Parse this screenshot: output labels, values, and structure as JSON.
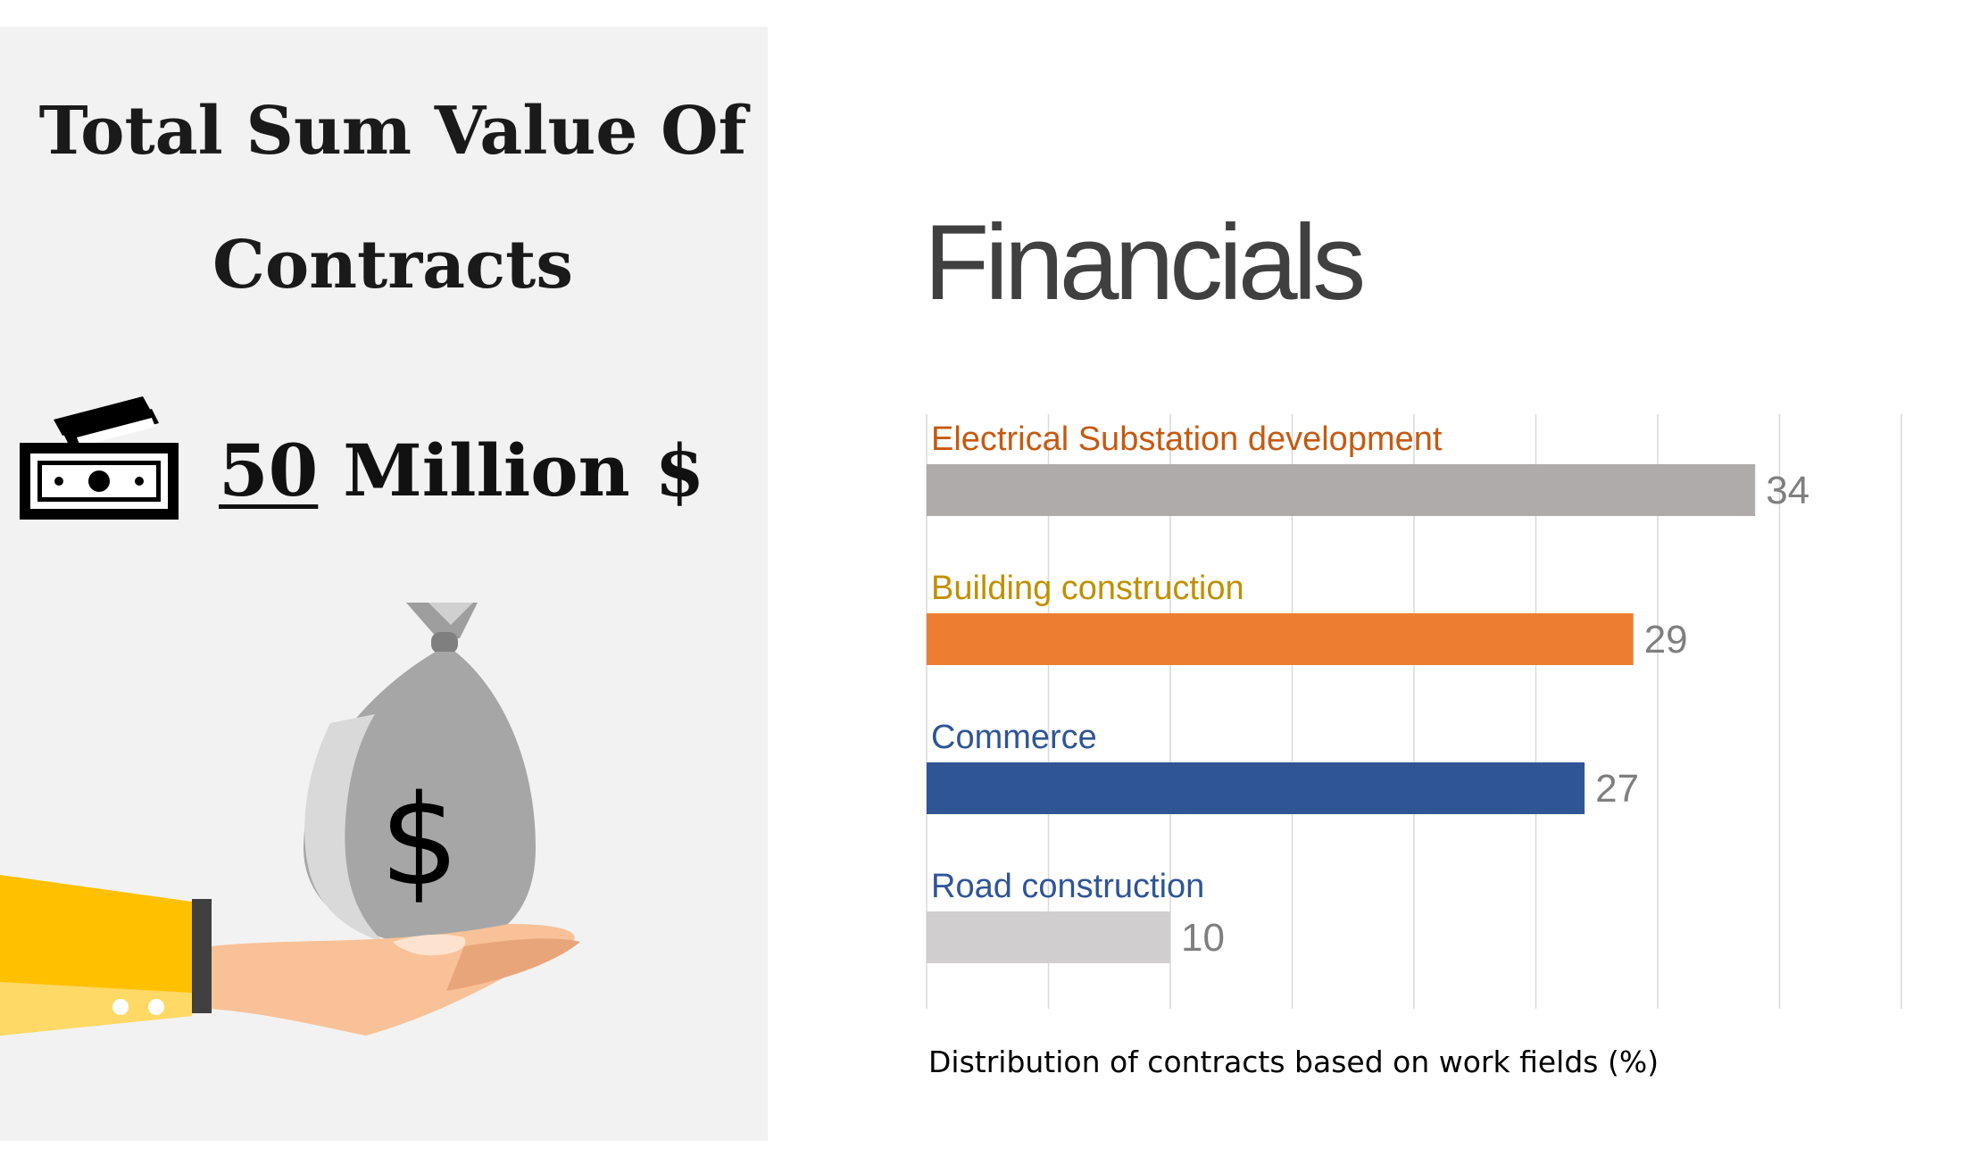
{
  "left_panel": {
    "title_line1": "Total Sum Value Of",
    "title_line2": "Contracts",
    "total_number": "50",
    "total_suffix": "Million $",
    "bag_symbol": "$",
    "icons": [
      "cash-icon",
      "money-bag-icon",
      "hand-icon"
    ]
  },
  "chart": {
    "heading": "Financials",
    "caption": "Distribution of contracts based on work fields (%)"
  },
  "chart_data": {
    "type": "bar",
    "orientation": "horizontal",
    "title": "Financials",
    "xlabel": "Distribution of contracts based on work fields (%)",
    "ylabel": "",
    "categories": [
      "Electrical Substation development",
      "Building construction",
      "Commerce",
      "Road construction"
    ],
    "values": [
      34,
      29,
      27,
      10
    ],
    "bar_colors": [
      "#afabab",
      "#ed7d31",
      "#2f5597",
      "#d0cece"
    ],
    "label_colors": [
      "#c55a11",
      "#bf9000",
      "#2f5597",
      "#2f5597"
    ],
    "value_label_color": "#7f7f7f",
    "xlim": [
      0,
      40
    ],
    "grid": true,
    "gridline_color": "#d9d9d9"
  }
}
